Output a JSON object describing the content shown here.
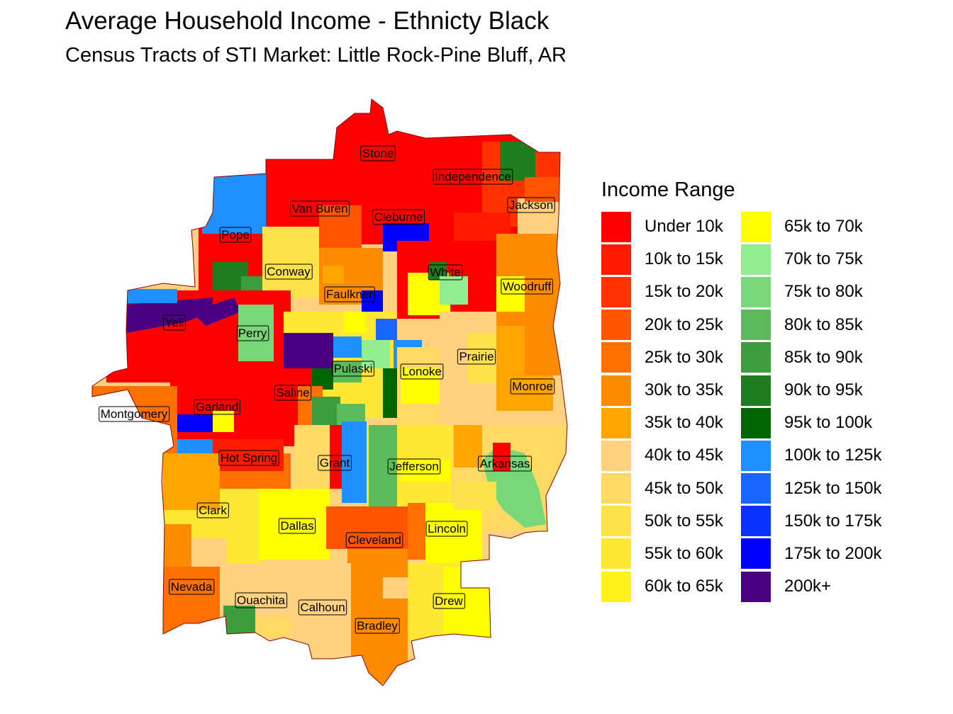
{
  "title": "Average Household Income - Ethnicty Black",
  "subtitle": "Census Tracts of STI Market: Little Rock-Pine Bluff, AR",
  "legend": {
    "title": "Income Range",
    "items": [
      {
        "label": "Under 10k",
        "color": "#ff0000"
      },
      {
        "label": "10k to 15k",
        "color": "#ff1a00"
      },
      {
        "label": "15k to 20k",
        "color": "#ff3300"
      },
      {
        "label": "20k to 25k",
        "color": "#ff5500"
      },
      {
        "label": "25k to 30k",
        "color": "#ff7000"
      },
      {
        "label": "30k to 35k",
        "color": "#ff8c00"
      },
      {
        "label": "35k to 40k",
        "color": "#ffa500"
      },
      {
        "label": "40k to 45k",
        "color": "#ffd27f"
      },
      {
        "label": "45k to 50k",
        "color": "#ffd966"
      },
      {
        "label": "50k to 55k",
        "color": "#ffe24a"
      },
      {
        "label": "55k to 60k",
        "color": "#ffe833"
      },
      {
        "label": "60k to 65k",
        "color": "#fff11a"
      },
      {
        "label": "65k to 70k",
        "color": "#ffff00"
      },
      {
        "label": "70k to 75k",
        "color": "#90ee90"
      },
      {
        "label": "75k to 80k",
        "color": "#78d878"
      },
      {
        "label": "80k to 85k",
        "color": "#5cbc5c"
      },
      {
        "label": "85k to 90k",
        "color": "#3d9c3d"
      },
      {
        "label": "90k to 95k",
        "color": "#1e7e1e"
      },
      {
        "label": "95k to 100k",
        "color": "#006400"
      },
      {
        "label": "100k to 125k",
        "color": "#1e90ff"
      },
      {
        "label": "125k to 150k",
        "color": "#1866ff"
      },
      {
        "label": "150k to 175k",
        "color": "#0a33ff"
      },
      {
        "label": "175k to 200k",
        "color": "#0000ff"
      },
      {
        "label": "200k+",
        "color": "#4b0082"
      }
    ]
  },
  "counties": [
    "Stone",
    "Independence",
    "Jackson",
    "Van Buren",
    "Cleburne",
    "Pope",
    "Conway",
    "White",
    "Woodruff",
    "Faulkner",
    "Yell",
    "Perry",
    "Prairie",
    "Pulaski",
    "Lonoke",
    "Monroe",
    "Saline",
    "Montgomery",
    "Garland",
    "Hot Spring",
    "Grant",
    "Jefferson",
    "Arkansas",
    "Clark",
    "Dallas",
    "Cleveland",
    "Lincoln",
    "Nevada",
    "Ouachita",
    "Calhoun",
    "Drew",
    "Bradley"
  ]
}
